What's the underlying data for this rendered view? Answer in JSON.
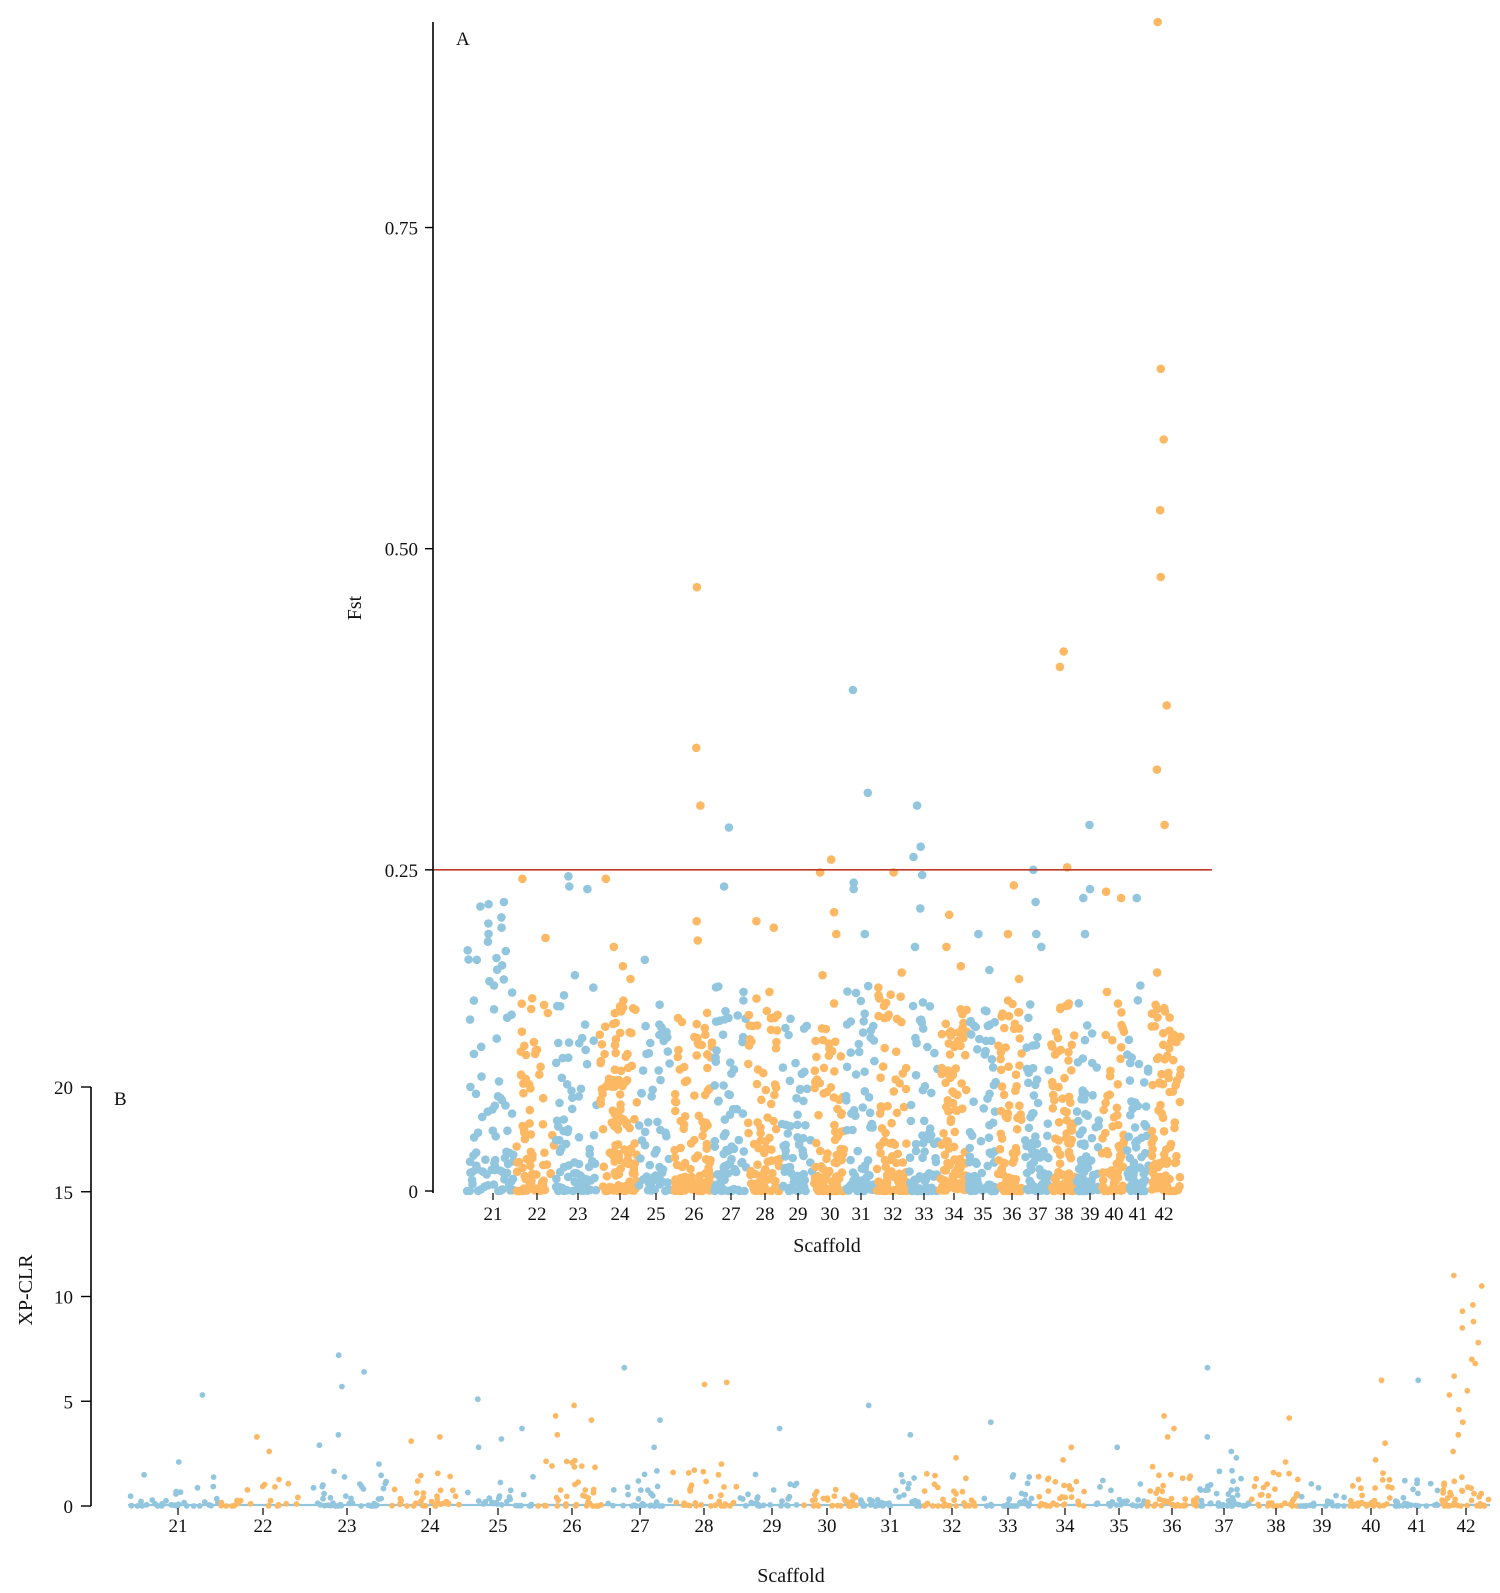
{
  "colors": {
    "blue": "#92c5de",
    "orange": "#fdb863",
    "threshold": "#c0392b",
    "axis": "#000000"
  },
  "chart_data": [
    {
      "panel": "A",
      "type": "scatter",
      "title": "",
      "xlabel": "Scaffold",
      "ylabel": "Fst",
      "ylim": [
        0,
        0.91
      ],
      "yticks": [
        "0",
        "0.25",
        "0.50",
        "0.75"
      ],
      "threshold": 0.25,
      "categories": [
        {
          "label": "21",
          "n": 85,
          "max": 0.23,
          "outliers": [
            0.225,
            0.213,
            0.205,
            0.18,
            0.16
          ]
        },
        {
          "label": "22",
          "n": 70,
          "max": 0.15,
          "outliers": [
            0.243,
            0.197,
            0.15
          ]
        },
        {
          "label": "23",
          "n": 80,
          "max": 0.16,
          "outliers": [
            0.245,
            0.237,
            0.235,
            0.168
          ]
        },
        {
          "label": "24",
          "n": 120,
          "max": 0.15,
          "outliers": [
            0.243,
            0.19,
            0.175,
            0.165
          ]
        },
        {
          "label": "25",
          "n": 60,
          "max": 0.13,
          "outliers": [
            0.18,
            0.145
          ]
        },
        {
          "label": "26",
          "n": 110,
          "max": 0.14,
          "outliers": [
            0.47,
            0.345,
            0.3,
            0.21,
            0.195
          ]
        },
        {
          "label": "27",
          "n": 75,
          "max": 0.16,
          "outliers": [
            0.283,
            0.237
          ]
        },
        {
          "label": "28",
          "n": 80,
          "max": 0.15,
          "outliers": [
            0.21,
            0.205,
            0.155
          ]
        },
        {
          "label": "29",
          "n": 60,
          "max": 0.14,
          "outliers": []
        },
        {
          "label": "30",
          "n": 90,
          "max": 0.15,
          "outliers": [
            0.258,
            0.248,
            0.217,
            0.2,
            0.168
          ]
        },
        {
          "label": "31",
          "n": 75,
          "max": 0.16,
          "outliers": [
            0.39,
            0.31,
            0.24,
            0.235,
            0.2
          ]
        },
        {
          "label": "32",
          "n": 85,
          "max": 0.16,
          "outliers": [
            0.248,
            0.17
          ]
        },
        {
          "label": "33",
          "n": 70,
          "max": 0.15,
          "outliers": [
            0.3,
            0.268,
            0.26,
            0.246,
            0.22,
            0.19
          ]
        },
        {
          "label": "34",
          "n": 100,
          "max": 0.15,
          "outliers": [
            0.215,
            0.19,
            0.175
          ]
        },
        {
          "label": "35",
          "n": 80,
          "max": 0.15,
          "outliers": [
            0.2,
            0.172
          ]
        },
        {
          "label": "36",
          "n": 75,
          "max": 0.15,
          "outliers": [
            0.238,
            0.2,
            0.165
          ]
        },
        {
          "label": "37",
          "n": 70,
          "max": 0.15,
          "outliers": [
            0.25,
            0.225,
            0.2,
            0.19
          ]
        },
        {
          "label": "38",
          "n": 80,
          "max": 0.15,
          "outliers": [
            0.42,
            0.408,
            0.252
          ]
        },
        {
          "label": "39",
          "n": 70,
          "max": 0.15,
          "outliers": [
            0.285,
            0.235,
            0.228,
            0.2
          ]
        },
        {
          "label": "40",
          "n": 65,
          "max": 0.15,
          "outliers": [
            0.233,
            0.228,
            0.155
          ]
        },
        {
          "label": "41",
          "n": 70,
          "max": 0.15,
          "outliers": [
            0.228,
            0.16
          ]
        },
        {
          "label": "42",
          "n": 90,
          "max": 0.15,
          "outliers": [
            0.91,
            0.64,
            0.585,
            0.53,
            0.478,
            0.378,
            0.328,
            0.285,
            0.17
          ]
        }
      ]
    },
    {
      "panel": "B",
      "type": "scatter",
      "title": "",
      "xlabel": "Scaffold",
      "ylabel": "XP-CLR",
      "ylim": [
        0,
        20
      ],
      "yticks": [
        "0",
        "5",
        "10",
        "15",
        "20"
      ],
      "categories": [
        {
          "label": "21",
          "n": 35,
          "max": 1.6,
          "outliers": [
            5.3,
            2.1
          ]
        },
        {
          "label": "22",
          "n": 25,
          "max": 1.5,
          "outliers": [
            3.3,
            2.6
          ]
        },
        {
          "label": "23",
          "n": 40,
          "max": 2.0,
          "outliers": [
            7.2,
            6.4,
            5.7,
            3.4,
            2.9
          ]
        },
        {
          "label": "24",
          "n": 35,
          "max": 1.8,
          "outliers": [
            3.3,
            3.1
          ]
        },
        {
          "label": "25",
          "n": 25,
          "max": 1.4,
          "outliers": [
            5.1,
            3.7,
            3.2,
            2.8
          ]
        },
        {
          "label": "26",
          "n": 35,
          "max": 2.2,
          "outliers": [
            4.8,
            4.3,
            4.1,
            3.4
          ]
        },
        {
          "label": "27",
          "n": 30,
          "max": 2.0,
          "outliers": [
            6.6,
            4.1,
            2.8
          ]
        },
        {
          "label": "28",
          "n": 30,
          "max": 1.8,
          "outliers": [
            5.9,
            5.8,
            2.0
          ]
        },
        {
          "label": "29",
          "n": 25,
          "max": 1.6,
          "outliers": [
            3.7
          ]
        },
        {
          "label": "30",
          "n": 30,
          "max": 0.8,
          "outliers": []
        },
        {
          "label": "31",
          "n": 35,
          "max": 1.6,
          "outliers": [
            4.8,
            3.4
          ]
        },
        {
          "label": "32",
          "n": 30,
          "max": 1.7,
          "outliers": [
            2.3
          ]
        },
        {
          "label": "33",
          "n": 25,
          "max": 1.5,
          "outliers": [
            4.0
          ]
        },
        {
          "label": "34",
          "n": 30,
          "max": 1.4,
          "outliers": [
            2.8,
            2.2
          ]
        },
        {
          "label": "35",
          "n": 20,
          "max": 1.3,
          "outliers": [
            2.8
          ]
        },
        {
          "label": "36",
          "n": 40,
          "max": 2.0,
          "outliers": [
            4.3,
            3.7,
            3.3
          ]
        },
        {
          "label": "37",
          "n": 40,
          "max": 1.8,
          "outliers": [
            6.6,
            3.3,
            2.6,
            2.3
          ]
        },
        {
          "label": "38",
          "n": 30,
          "max": 1.6,
          "outliers": [
            4.2,
            2.1
          ]
        },
        {
          "label": "39",
          "n": 20,
          "max": 1.2,
          "outliers": []
        },
        {
          "label": "40",
          "n": 35,
          "max": 1.6,
          "outliers": [
            6.0,
            3.0,
            2.2
          ]
        },
        {
          "label": "41",
          "n": 25,
          "max": 1.3,
          "outliers": [
            6.0
          ]
        },
        {
          "label": "42",
          "n": 40,
          "max": 1.5,
          "outliers": [
            11.0,
            10.5,
            9.6,
            9.3,
            8.8,
            8.5,
            7.8,
            7.0,
            6.8,
            6.2,
            5.5,
            5.3,
            4.6,
            4.0,
            3.4,
            2.6
          ]
        }
      ]
    }
  ]
}
